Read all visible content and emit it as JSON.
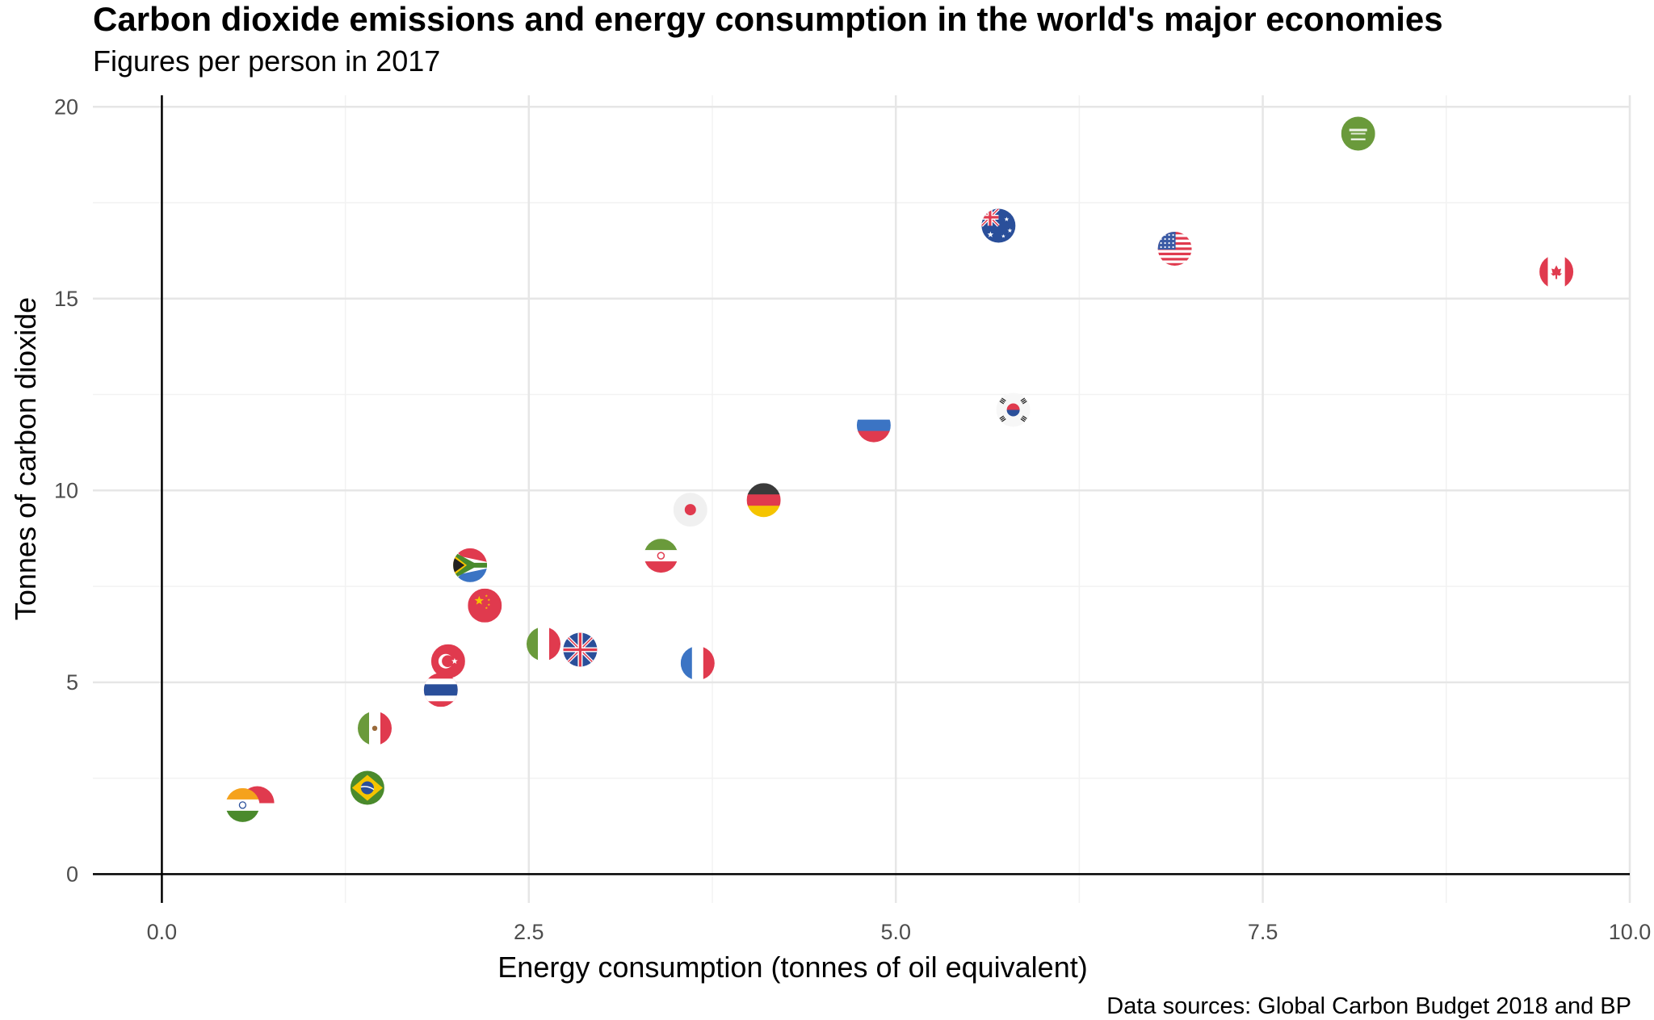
{
  "chart_data": {
    "type": "scatter",
    "title": "Carbon dioxide emissions and energy consumption in the world's major economies",
    "subtitle": "Figures per person in 2017",
    "caption": "Data sources: Global Carbon Budget 2018 and BP",
    "xlabel": "Energy consumption (tonnes of oil equivalent)",
    "ylabel": "Tonnes of carbon dioxide",
    "xlim": [
      -0.47,
      10.0
    ],
    "ylim": [
      -0.75,
      20.3
    ],
    "x_ticks": [
      0.0,
      2.5,
      5.0,
      7.5,
      10.0
    ],
    "x_tick_labels": [
      "0.0",
      "2.5",
      "5.0",
      "7.5",
      "10.0"
    ],
    "y_ticks": [
      0,
      5,
      10,
      15,
      20
    ],
    "y_tick_labels": [
      "0",
      "5",
      "10",
      "15",
      "20"
    ],
    "grid": true,
    "marker": "country flag icon",
    "points": [
      {
        "flag": "saudi-arabia-flag",
        "x": 8.15,
        "y": 19.3
      },
      {
        "flag": "australia-flag",
        "x": 5.7,
        "y": 16.9
      },
      {
        "flag": "united-states-flag",
        "x": 6.9,
        "y": 16.3
      },
      {
        "flag": "canada-flag",
        "x": 9.5,
        "y": 15.7
      },
      {
        "flag": "south-korea-flag",
        "x": 5.8,
        "y": 12.1
      },
      {
        "flag": "russia-flag",
        "x": 4.85,
        "y": 11.7
      },
      {
        "flag": "germany-flag",
        "x": 4.1,
        "y": 9.75
      },
      {
        "flag": "japan-flag",
        "x": 3.6,
        "y": 9.5
      },
      {
        "flag": "iran-flag",
        "x": 3.4,
        "y": 8.3
      },
      {
        "flag": "south-africa-flag",
        "x": 2.1,
        "y": 8.05
      },
      {
        "flag": "china-flag",
        "x": 2.2,
        "y": 7.0
      },
      {
        "flag": "italy-flag",
        "x": 2.6,
        "y": 6.0
      },
      {
        "flag": "united-kingdom-flag",
        "x": 2.85,
        "y": 5.85
      },
      {
        "flag": "turkey-flag",
        "x": 1.95,
        "y": 5.55
      },
      {
        "flag": "france-flag",
        "x": 3.65,
        "y": 5.5
      },
      {
        "flag": "thailand-flag",
        "x": 1.9,
        "y": 4.8
      },
      {
        "flag": "mexico-flag",
        "x": 1.45,
        "y": 3.8
      },
      {
        "flag": "brazil-flag",
        "x": 1.4,
        "y": 2.25
      },
      {
        "flag": "indonesia-flag",
        "x": 0.65,
        "y": 1.85
      },
      {
        "flag": "india-flag",
        "x": 0.55,
        "y": 1.8
      }
    ]
  }
}
